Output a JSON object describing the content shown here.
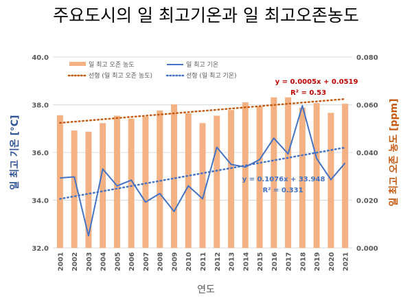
{
  "chart_data": {
    "type": "bar+line",
    "title": "주요도시의 일 최고기온과 일 최고오존농도",
    "xlabel": "연도",
    "ylabel_left": "일 최고 기온 [°C]",
    "ylabel_right": "일 최고 오존 농도 [ppm]",
    "ylim_left": [
      32.0,
      40.0
    ],
    "ylim_right": [
      0.0,
      0.08
    ],
    "yticks_left": [
      "32.0",
      "34.0",
      "36.0",
      "38.0",
      "40.0"
    ],
    "yticks_right": [
      "0.000",
      "0.020",
      "0.040",
      "0.060",
      "0.080"
    ],
    "grid": true,
    "legend_placement": "top-left",
    "categories": [
      "2001",
      "2002",
      "2003",
      "2004",
      "2005",
      "2006",
      "2007",
      "2008",
      "2009",
      "2010",
      "2011",
      "2012",
      "2013",
      "2014",
      "2015",
      "2016",
      "2017",
      "2018",
      "2019",
      "2020",
      "2021"
    ],
    "series": [
      {
        "name": "일 최고 오존 농도",
        "type": "bar",
        "axis": "right",
        "color": "#F4B183",
        "values": [
          0.0556,
          0.0492,
          0.0487,
          0.0523,
          0.0554,
          0.0542,
          0.055,
          0.0576,
          0.0602,
          0.0564,
          0.0523,
          0.0554,
          0.0578,
          0.061,
          0.0593,
          0.0631,
          0.0631,
          0.0588,
          0.0607,
          0.0566,
          0.0604
        ]
      },
      {
        "name": "일 최고 기온",
        "type": "line",
        "axis": "left",
        "color": "#4472C4",
        "values": [
          34.93,
          34.98,
          32.51,
          35.31,
          34.6,
          34.84,
          33.92,
          34.28,
          33.53,
          34.6,
          34.06,
          36.22,
          35.5,
          35.39,
          35.7,
          36.6,
          35.94,
          37.96,
          35.75,
          34.86,
          35.56
        ]
      },
      {
        "name": "선형 (일 최고 오존 농도)",
        "type": "trend",
        "axis": "right",
        "color": "#C55A11",
        "slope": 0.0005,
        "intercept": 0.0519
      },
      {
        "name": "선형 (일 최고 기온)",
        "type": "trend",
        "axis": "left",
        "color": "#4472C4",
        "slope": 0.1076,
        "intercept": 33.948
      }
    ],
    "annotations": {
      "ozone_eq": "y = 0.0005x + 0.0519",
      "ozone_r2": "R² = 0.53",
      "temp_eq": "y = 0.1076x + 33.948",
      "temp_r2": "R² = 0.331"
    }
  }
}
